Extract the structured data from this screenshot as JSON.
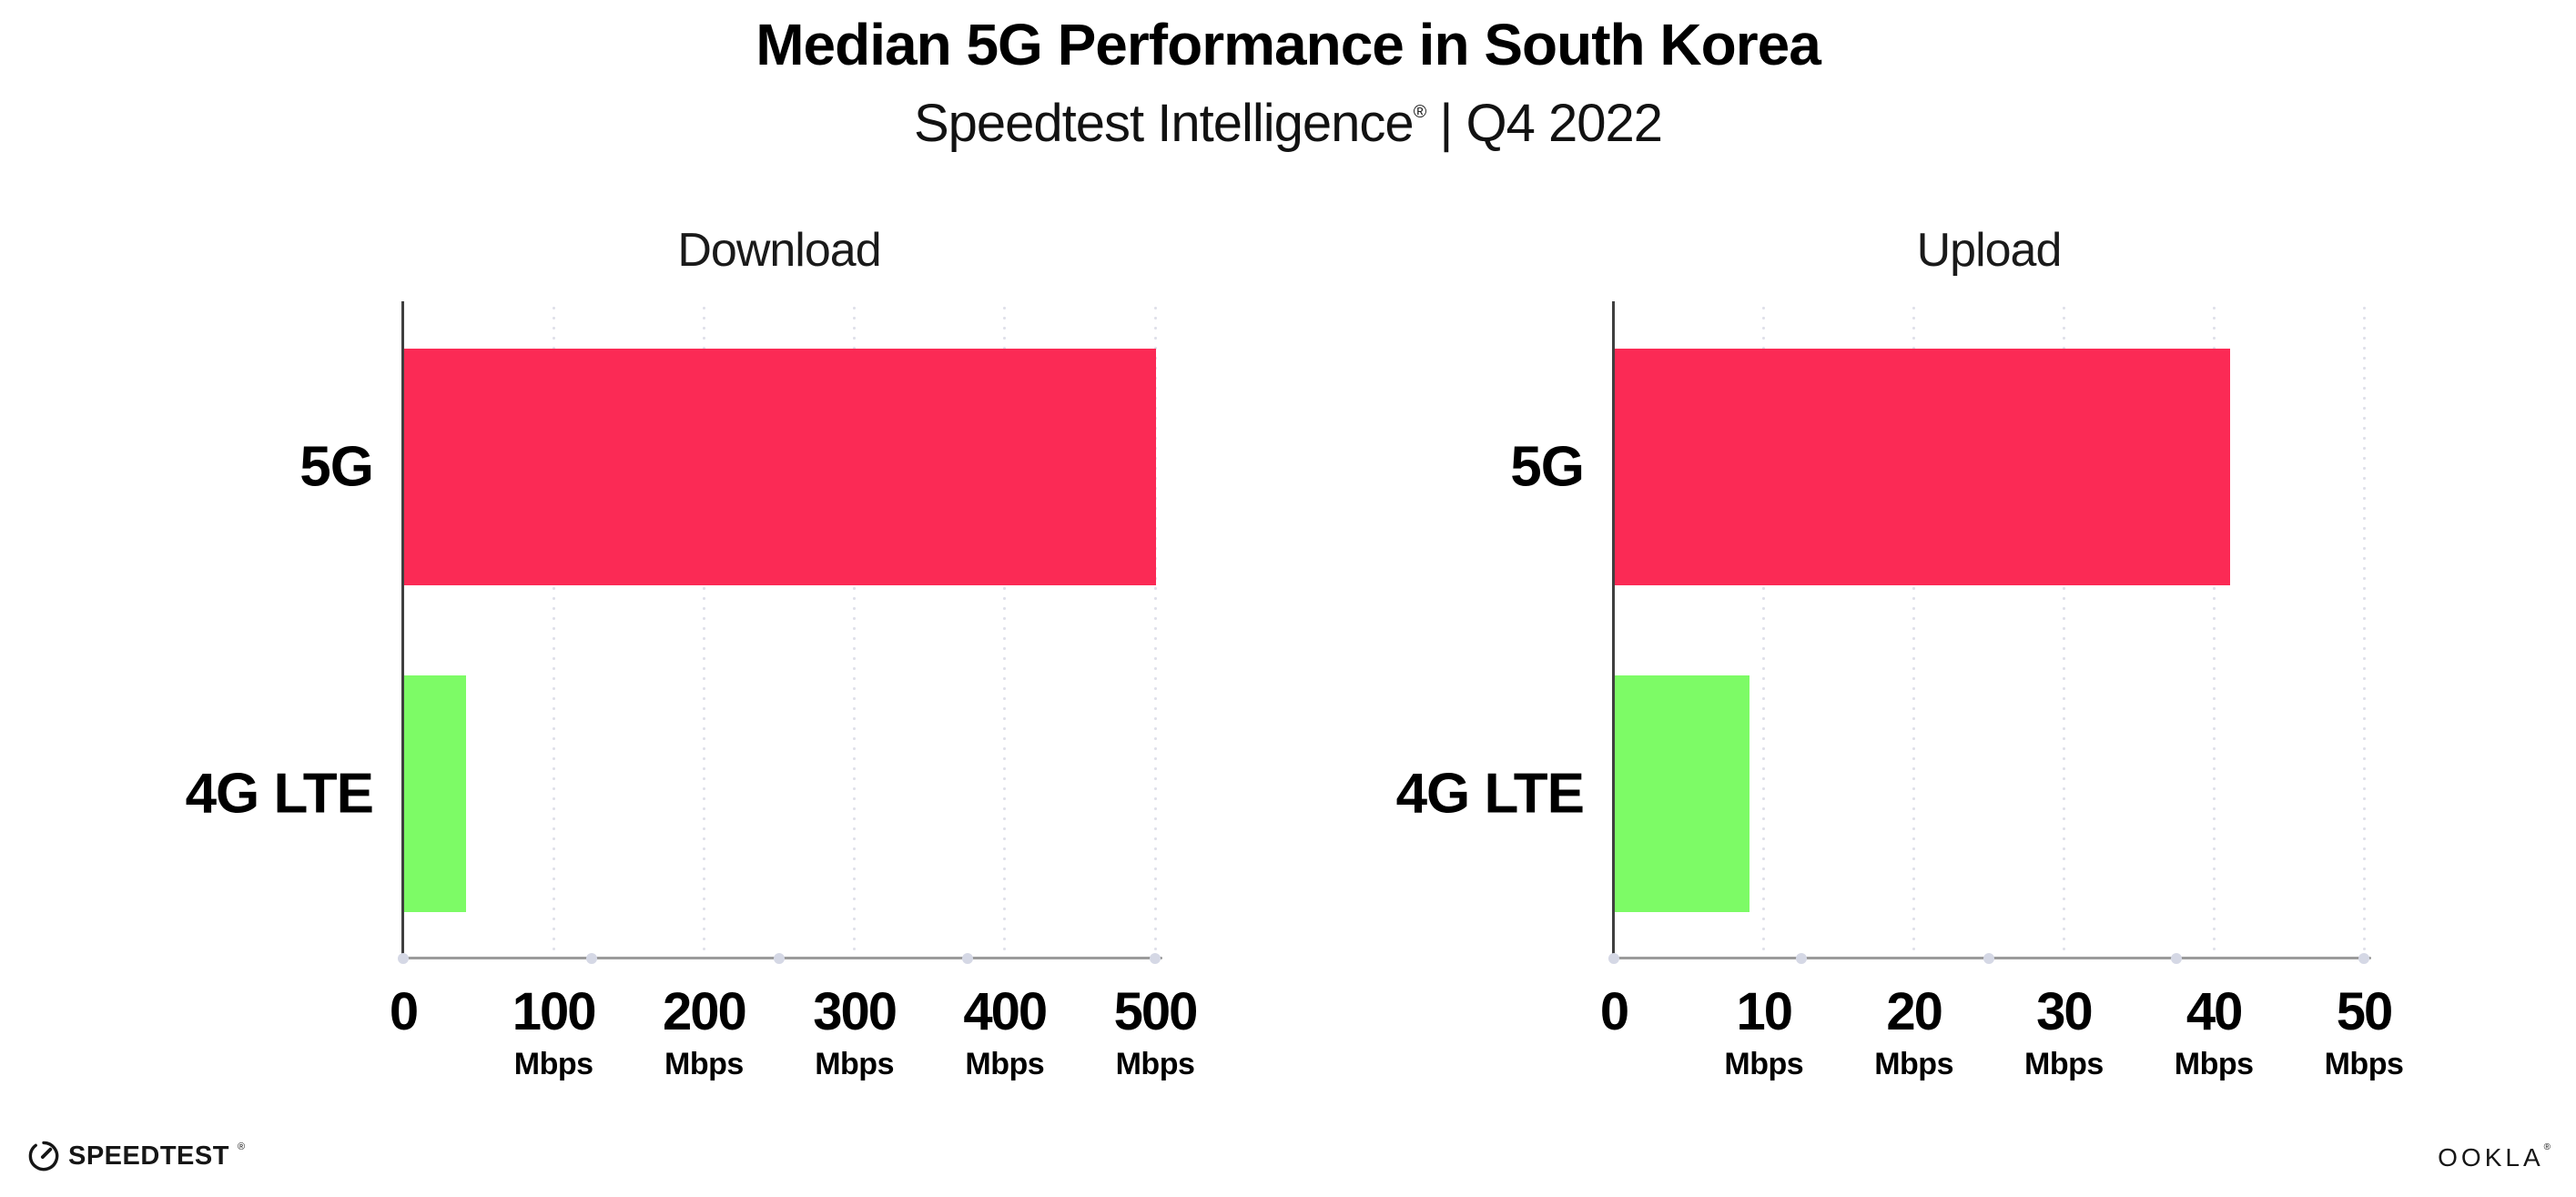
{
  "header": {
    "title": "Median 5G Performance in South Korea",
    "subtitle_brand": "Speedtest Intelligence",
    "subtitle_reg": "®",
    "subtitle_rest": " | Q4 2022"
  },
  "chart_data": [
    {
      "type": "bar",
      "orientation": "horizontal",
      "title": "Download",
      "categories": [
        "5G",
        "4G LTE"
      ],
      "values": [
        500,
        41
      ],
      "unit": "Mbps",
      "xlim": [
        0,
        500
      ],
      "xticks": [
        0,
        100,
        200,
        300,
        400,
        500
      ],
      "grid": "dotted-vertical",
      "series_colors": [
        "#fb2a55",
        "#7dfb66"
      ]
    },
    {
      "type": "bar",
      "orientation": "horizontal",
      "title": "Upload",
      "categories": [
        "5G",
        "4G LTE"
      ],
      "values": [
        41,
        9
      ],
      "unit": "Mbps",
      "xlim": [
        0,
        50
      ],
      "xticks": [
        0,
        10,
        20,
        30,
        40,
        50
      ],
      "grid": "dotted-vertical",
      "series_colors": [
        "#fb2a55",
        "#7dfb66"
      ]
    }
  ],
  "colors": {
    "bar_5g": "#fb2a55",
    "bar_4g_lte": "#7dfb66",
    "x_axis_line": "#9b9b9b",
    "y_axis_line": "#3f3f3f",
    "grid_dot": "#dfe0ea",
    "axis_end_dot": "#d5d8e5",
    "text": "#0a0a0a",
    "background": "#ffffff"
  },
  "footer": {
    "speedtest_label": "SPEEDTEST",
    "speedtest_reg": "®",
    "ookla_label": "OOKLA",
    "ookla_reg": "®"
  }
}
